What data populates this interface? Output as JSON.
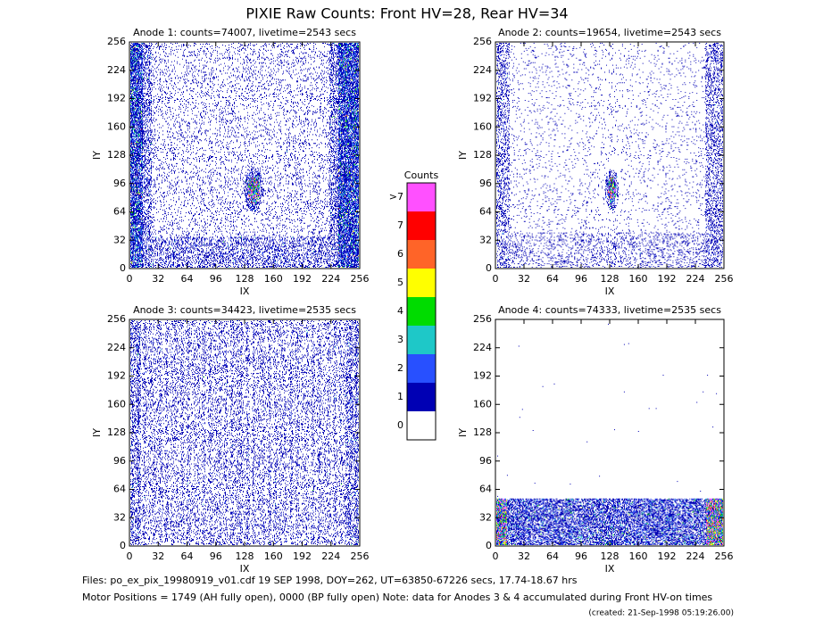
{
  "title": "PIXIE Raw Counts:  Front HV=28, Rear HV=34",
  "chart_data": [
    {
      "type": "heatmap",
      "title": "Anode 1: counts=74007, livetime=2543 secs",
      "xlabel": "IX",
      "ylabel": "IY",
      "xlim": [
        0,
        256
      ],
      "ylim": [
        0,
        256
      ],
      "xticks": [
        0,
        32,
        64,
        96,
        128,
        160,
        192,
        224,
        256
      ],
      "yticks": [
        0,
        32,
        64,
        96,
        128,
        160,
        192,
        224,
        256
      ]
    },
    {
      "type": "heatmap",
      "title": "Anode 2: counts=19654, livetime=2543 secs",
      "xlabel": "IX",
      "ylabel": "IY",
      "xlim": [
        0,
        256
      ],
      "ylim": [
        0,
        256
      ],
      "xticks": [
        0,
        32,
        64,
        96,
        128,
        160,
        192,
        224,
        256
      ],
      "yticks": [
        0,
        32,
        64,
        96,
        128,
        160,
        192,
        224,
        256
      ]
    },
    {
      "type": "heatmap",
      "title": "Anode 3: counts=34423, livetime=2535 secs",
      "xlabel": "IX",
      "ylabel": "IY",
      "xlim": [
        0,
        256
      ],
      "ylim": [
        0,
        256
      ],
      "xticks": [
        0,
        32,
        64,
        96,
        128,
        160,
        192,
        224,
        256
      ],
      "yticks": [
        0,
        32,
        64,
        96,
        128,
        160,
        192,
        224,
        256
      ]
    },
    {
      "type": "heatmap",
      "title": "Anode 4: counts=74333, livetime=2535 secs",
      "xlabel": "IX",
      "ylabel": "IY",
      "xlim": [
        0,
        256
      ],
      "ylim": [
        0,
        256
      ],
      "xticks": [
        0,
        32,
        64,
        96,
        128,
        160,
        192,
        224,
        256
      ],
      "yticks": [
        0,
        32,
        64,
        96,
        128,
        160,
        192,
        224,
        256
      ]
    }
  ],
  "colorbar": {
    "title": "Counts",
    "labels": [
      "0",
      "1",
      "2",
      "3",
      "4",
      "5",
      "6",
      "7",
      ">7"
    ],
    "colors": [
      "#ffffff",
      "#0000b4",
      "#2850ff",
      "#1ec8c8",
      "#00dc00",
      "#ffff00",
      "#ff6428",
      "#ff0000",
      "#ff50ff"
    ]
  },
  "footer": [
    "Files: po_ex_pix_19980919_v01.cdf     19 SEP 1998, DOY=262, UT=63850-67226 secs, 17.74-18.67 hrs",
    "Motor Positions = 1749 (AH fully open), 0000 (BP fully open)    Note: data for Anodes 3 & 4 accumulated during Front HV-on times"
  ],
  "created": "(created: 21-Sep-1998 05:19:26.00)"
}
